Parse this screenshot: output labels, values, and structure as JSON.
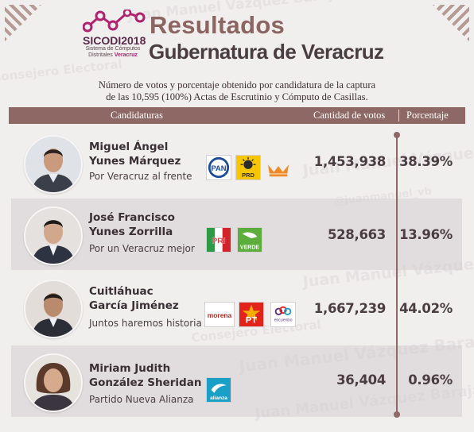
{
  "watermark": {
    "text_lines": [
      "Juan Manuel Vázquez Barajas",
      "Consejero Electoral",
      "@juanmanuel_vb",
      "Juan Manuel Vázquez Barajas"
    ]
  },
  "header": {
    "logo_name": "SICODI",
    "logo_year": "2018",
    "logo_subtitle_line1": "Sistema de Cómputos",
    "logo_subtitle_line2": "Distritales",
    "logo_subtitle_state": "Veracruz",
    "title": "Resultados",
    "subtitle": "Gubernatura de Veracruz"
  },
  "description": {
    "line1": "Número de votos y porcentaje obtenido por candidatura de la captura",
    "line2": "de las 10,595 (100%) Actas de Escrutinio y Cómputo de Casillas."
  },
  "table": {
    "headers": {
      "candidates": "Candidaturas",
      "votes": "Cantidad de votos",
      "percent": "Porcentaje"
    },
    "rows": [
      {
        "name_line1": "Miguel Ángel",
        "name_line2": "Yunes Márquez",
        "coalition": "Por Veracruz al frente",
        "votes": "1,453,938",
        "percent": "38.39%",
        "vote_share": 0.3839,
        "parties": [
          {
            "label": "PAN",
            "color": "#1b4b9b"
          },
          {
            "label": "PRD",
            "color": "#f7c600"
          },
          {
            "label": "MC",
            "color": "#f08a24"
          }
        ]
      },
      {
        "name_line1": "José Francisco",
        "name_line2": "Yunes Zorrilla",
        "coalition": "Por un Veracruz mejor",
        "votes": "528,663",
        "percent": "13.96%",
        "vote_share": 0.1396,
        "parties": [
          {
            "label": "PRI",
            "color": "#d2232a"
          },
          {
            "label": "VERDE",
            "color": "#5cad3c"
          }
        ]
      },
      {
        "name_line1": "Cuitláhuac",
        "name_line2": "García Jiménez",
        "coalition": "Juntos haremos historia",
        "votes": "1,667,239",
        "percent": "44.02%",
        "vote_share": 0.4402,
        "parties": [
          {
            "label": "morena",
            "color": "#b5261e"
          },
          {
            "label": "PT",
            "color": "#e2231a"
          },
          {
            "label": "encuentro",
            "color": "#5b2d8a"
          }
        ]
      },
      {
        "name_line1": "Miriam Judith",
        "name_line2": "González Sheridan",
        "coalition": "Partido Nueva Alianza",
        "votes": "36,404",
        "percent": "0.96%",
        "vote_share": 0.0096,
        "parties": [
          {
            "label": "alianza",
            "color": "#1aa0c6"
          }
        ]
      }
    ]
  }
}
